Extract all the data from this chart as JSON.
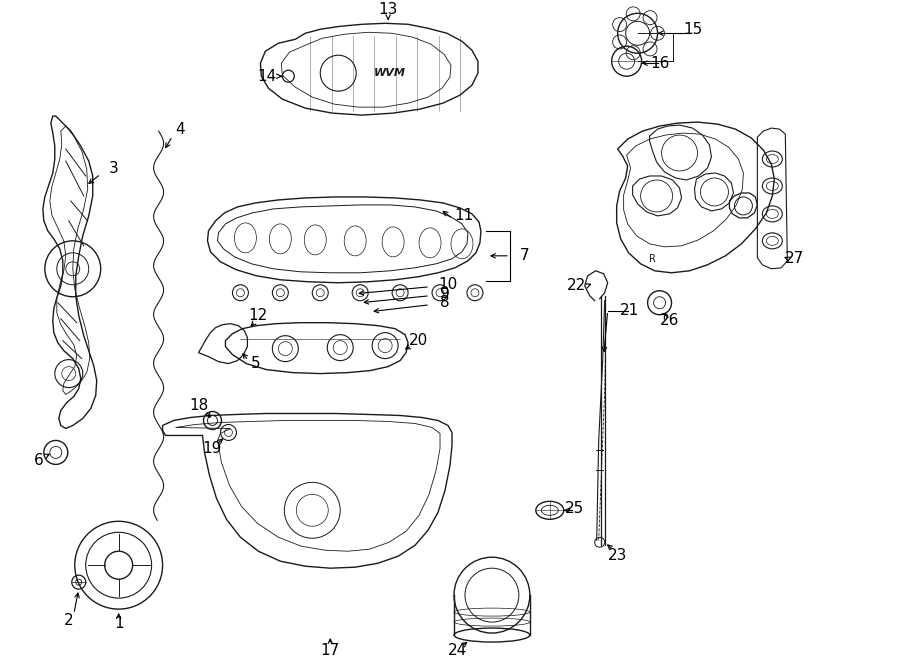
{
  "bg_color": "#ffffff",
  "line_color": "#1a1a1a",
  "figsize": [
    9.0,
    6.61
  ],
  "dpi": 100,
  "lw": 1.0
}
